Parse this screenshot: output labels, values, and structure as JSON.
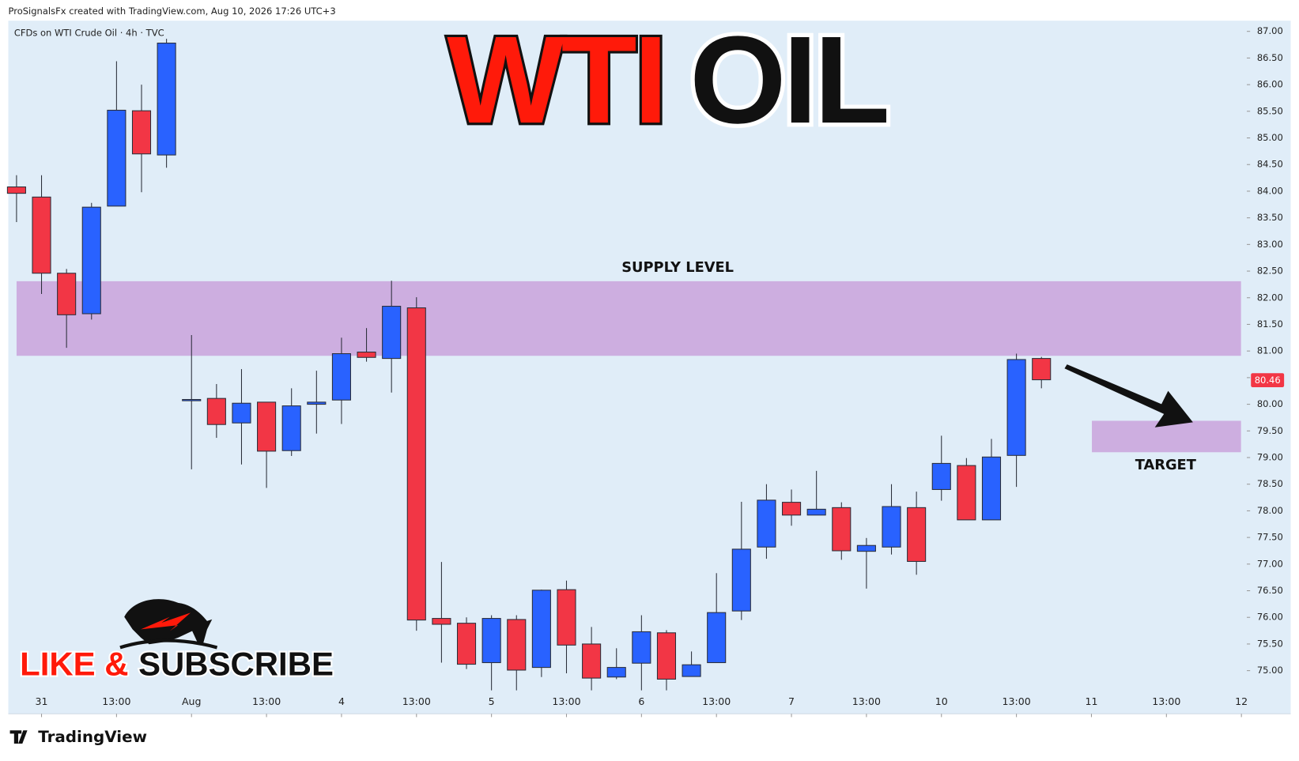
{
  "header": "ProSignalsFx created with TradingView.com, Aug 10, 2026 17:26 UTC+3",
  "footer_logo": "TradingView",
  "chart_data": {
    "type": "candlestick",
    "symbol": "CFDs on WTI Crude Oil · 4h · TVC",
    "title_parts": [
      {
        "text": "WTI",
        "color": "#ff1a0a"
      },
      {
        "text": "OIL",
        "color": "#111111"
      }
    ],
    "cta_parts": [
      {
        "text": "LIKE &",
        "color": "#ff1a0a"
      },
      {
        "text": "SUBSCRIBE",
        "color": "#111111"
      }
    ],
    "up_color": "#2962ff",
    "down_color": "#f23645",
    "x": [
      0,
      1,
      2,
      3,
      4,
      5,
      6,
      7,
      8,
      9,
      10,
      11,
      12,
      13,
      14,
      15,
      16,
      17,
      18,
      19,
      20,
      21,
      22,
      23,
      24,
      25,
      26,
      27,
      28,
      29,
      30,
      31,
      32,
      33,
      34,
      35,
      36,
      37,
      38,
      39,
      40,
      41
    ],
    "open": [
      84.08,
      83.89,
      82.46,
      81.7,
      83.72,
      85.51,
      84.68,
      80.08,
      80.11,
      79.65,
      80.04,
      79.13,
      80.0,
      80.08,
      80.98,
      80.86,
      81.81,
      75.98,
      75.89,
      75.15,
      75.96,
      75.06,
      76.52,
      75.5,
      74.88,
      75.14,
      75.71,
      74.89,
      75.15,
      76.12,
      77.32,
      78.16,
      77.92,
      78.06,
      77.24,
      77.32,
      78.06,
      78.4,
      78.85,
      77.83,
      79.04,
      80.86
    ],
    "high": [
      84.3,
      84.3,
      82.54,
      83.78,
      86.44,
      86.0,
      86.86,
      81.3,
      80.38,
      80.66,
      80.04,
      80.3,
      80.63,
      81.25,
      81.43,
      82.32,
      82.01,
      77.04,
      76.0,
      76.04,
      76.04,
      76.52,
      76.69,
      75.82,
      75.42,
      76.04,
      75.76,
      75.36,
      76.83,
      78.17,
      78.5,
      78.4,
      78.75,
      78.16,
      77.49,
      78.5,
      78.36,
      79.41,
      78.99,
      79.35,
      80.95,
      80.89
    ],
    "low": [
      83.42,
      82.07,
      81.06,
      81.59,
      83.72,
      83.98,
      84.44,
      78.78,
      79.37,
      78.87,
      78.43,
      79.03,
      79.45,
      79.63,
      80.8,
      80.22,
      75.75,
      75.15,
      75.03,
      74.63,
      74.63,
      74.88,
      74.95,
      74.63,
      74.84,
      74.63,
      74.63,
      74.89,
      75.15,
      75.95,
      77.1,
      77.72,
      77.92,
      77.08,
      76.54,
      77.18,
      76.8,
      78.19,
      77.83,
      77.83,
      78.45,
      80.3
    ],
    "close": [
      83.96,
      82.46,
      81.68,
      83.7,
      85.52,
      84.7,
      86.78,
      80.09,
      79.62,
      80.02,
      79.12,
      79.97,
      80.04,
      80.95,
      80.88,
      81.84,
      75.95,
      75.87,
      75.12,
      75.98,
      75.01,
      76.51,
      75.48,
      74.86,
      75.06,
      75.73,
      74.84,
      75.11,
      76.09,
      77.28,
      78.2,
      77.92,
      78.03,
      77.25,
      77.35,
      78.08,
      77.05,
      78.89,
      77.83,
      79.01,
      80.84,
      80.46
    ],
    "last_price": 80.46,
    "zones": [
      {
        "label": "SUPPLY LEVEL",
        "ymin": 80.91,
        "ymax": 82.31,
        "color": "#cdaee0"
      },
      {
        "label": "TARGET",
        "ymin": 79.1,
        "ymax": 79.69,
        "color": "#cdaee0"
      }
    ],
    "xlim": [
      -0.33,
      49.05
    ],
    "xticks": [
      {
        "value": 1,
        "label": "31"
      },
      {
        "value": 4,
        "label": "13:00"
      },
      {
        "value": 7,
        "label": "Aug"
      },
      {
        "value": 10,
        "label": "13:00"
      },
      {
        "value": 13,
        "label": "4"
      },
      {
        "value": 16,
        "label": "13:00"
      },
      {
        "value": 19,
        "label": "5"
      },
      {
        "value": 22,
        "label": "13:00"
      },
      {
        "value": 25,
        "label": "6"
      },
      {
        "value": 28,
        "label": "13:00"
      },
      {
        "value": 31,
        "label": "7"
      },
      {
        "value": 34,
        "label": "13:00"
      },
      {
        "value": 37,
        "label": "10"
      },
      {
        "value": 40,
        "label": "13:00"
      },
      {
        "value": 43,
        "label": "11"
      },
      {
        "value": 46,
        "label": "13:00"
      },
      {
        "value": 49,
        "label": "12"
      }
    ],
    "ylim": [
      74.19,
      87.2
    ],
    "yticks": [
      {
        "value": 75,
        "label": "75.00"
      },
      {
        "value": 75.5,
        "label": "75.50"
      },
      {
        "value": 76,
        "label": "76.00"
      },
      {
        "value": 76.5,
        "label": "76.50"
      },
      {
        "value": 77,
        "label": "77.00"
      },
      {
        "value": 77.5,
        "label": "77.50"
      },
      {
        "value": 78,
        "label": "78.00"
      },
      {
        "value": 78.5,
        "label": "78.50"
      },
      {
        "value": 79,
        "label": "79.00"
      },
      {
        "value": 79.5,
        "label": "79.50"
      },
      {
        "value": 80,
        "label": "80.00"
      },
      {
        "value": 80.5,
        "label": "80.50"
      },
      {
        "value": 81,
        "label": "81.00"
      },
      {
        "value": 81.5,
        "label": "81.50"
      },
      {
        "value": 82,
        "label": "82.00"
      },
      {
        "value": 82.5,
        "label": "82.50"
      },
      {
        "value": 83,
        "label": "83.00"
      },
      {
        "value": 83.5,
        "label": "83.50"
      },
      {
        "value": 84,
        "label": "84.00"
      },
      {
        "value": 84.5,
        "label": "84.50"
      },
      {
        "value": 85,
        "label": "85.00"
      },
      {
        "value": 85.5,
        "label": "85.50"
      },
      {
        "value": 86,
        "label": "86.00"
      },
      {
        "value": 86.5,
        "label": "86.50"
      },
      {
        "value": 87,
        "label": "87.00"
      }
    ]
  }
}
